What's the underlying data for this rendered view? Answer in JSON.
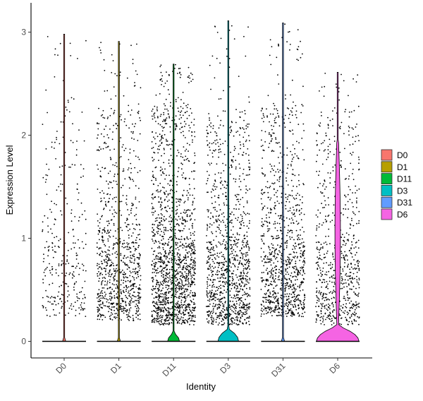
{
  "chart_data": {
    "type": "violin",
    "title": "",
    "xlabel": "Identity",
    "ylabel": "Expression Level",
    "ylim": [
      -0.15,
      3.15
    ],
    "yticks": [
      0,
      1,
      2,
      3
    ],
    "grid": false,
    "legend_position": "right",
    "categories": [
      "D0",
      "D1",
      "D11",
      "D3",
      "D31",
      "D6"
    ],
    "series": [
      {
        "name": "D0",
        "color": "#F8766D",
        "max": 2.98,
        "dense_low": 0.3,
        "dense_high": 2.4,
        "dot_count": 300,
        "bulge_height": 0.02,
        "bulge_width": 0.05
      },
      {
        "name": "D1",
        "color": "#B79F00",
        "max": 2.91,
        "dense_low": 0.25,
        "dense_high": 2.3,
        "dot_count": 900,
        "bulge_height": 0.02,
        "bulge_width": 0.05
      },
      {
        "name": "D11",
        "color": "#00BA38",
        "max": 2.69,
        "dense_low": 0.2,
        "dense_high": 2.3,
        "dot_count": 1500,
        "bulge_height": 0.08,
        "bulge_width": 0.25
      },
      {
        "name": "D3",
        "color": "#00BFC4",
        "max": 3.11,
        "dense_low": 0.2,
        "dense_high": 2.25,
        "dot_count": 1100,
        "bulge_height": 0.12,
        "bulge_width": 0.45
      },
      {
        "name": "D31",
        "color": "#619CFF",
        "max": 3.09,
        "dense_low": 0.3,
        "dense_high": 2.3,
        "dot_count": 1000,
        "bulge_height": 0.02,
        "bulge_width": 0.05
      },
      {
        "name": "D6",
        "color": "#F564E3",
        "max": 2.61,
        "dense_low": 0.2,
        "dense_high": 2.25,
        "dot_count": 700,
        "bulge_height": 0.15,
        "bulge_width": 0.95
      }
    ]
  }
}
